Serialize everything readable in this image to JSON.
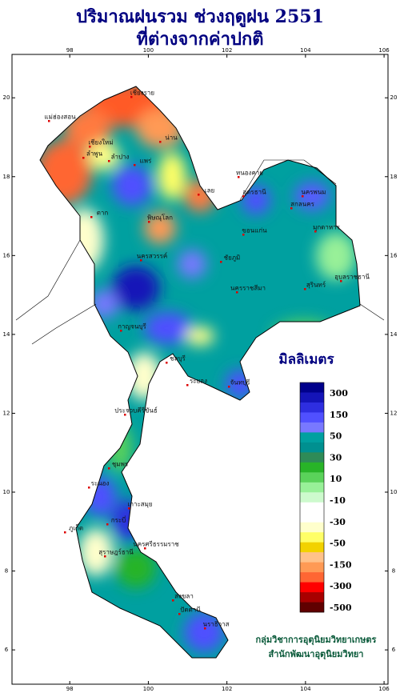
{
  "title_lines": [
    "ปริมาณฝนรวม ช่วงฤดูฝน 2551",
    "ที่ต่างจากค่าปกติ"
  ],
  "map": {
    "xlim": [
      96.53,
      106.1
    ],
    "ylim": [
      5.13,
      21.1
    ],
    "xticks": [
      98,
      100,
      102,
      104,
      106
    ],
    "yticks": [
      6,
      8,
      10,
      12,
      14,
      16,
      18,
      20
    ]
  },
  "legend": {
    "title": "มิลลิเมตร",
    "colors": [
      "#00008b",
      "#1414b8",
      "#2e2ee0",
      "#5050ff",
      "#7878ff",
      "#00a0a0",
      "#009090",
      "#2e8b57",
      "#28b428",
      "#5ad25a",
      "#98f098",
      "#cdfacd",
      "#ffffff",
      "#ffffff",
      "#ffffcc",
      "#ffff66",
      "#f2d200",
      "#ffc28a",
      "#ff9a55",
      "#ff6633",
      "#ff0000",
      "#a80000",
      "#600000"
    ],
    "labels": [
      300,
      150,
      50,
      30,
      10,
      -10,
      -30,
      -50,
      -150,
      -300,
      -500
    ]
  },
  "provinces": [
    "เชียงราย",
    "แม่ฮ่องสอน",
    "เชียงใหม่",
    "น่าน",
    "ลำพูน",
    "ลำปาง",
    "แพร่",
    "ตาก",
    "พิษณุโลก",
    "เลย",
    "หนองคาย",
    "อุดรธานี",
    "นครพนม",
    "สกลนคร",
    "มุกดาหาร",
    "ขอนแก่น",
    "ชัยภูมิ",
    "นครสวรรค์",
    "นครราชสีมา",
    "อุบลราชธานี",
    "สุรินทร์",
    "กาญจนบุรี",
    "ชลบุรี",
    "ระยอง",
    "จันทบุรี",
    "ประจวบคีรีขันธ์",
    "ชุมพร",
    "ระนอง",
    "เกาะสมุย",
    "ภูเก็ต",
    "กระบี่",
    "นครศรีธรรมราช",
    "สงขลา",
    "ปัตตานี",
    "นราธิวาส",
    "สุราษฎร์ธานี"
  ],
  "credits": [
    "กลุ่มวิชาการอุตุนิยมวิทยาเกษตร",
    "สำนักพัฒนาอุตุนิยมวิทยา"
  ]
}
